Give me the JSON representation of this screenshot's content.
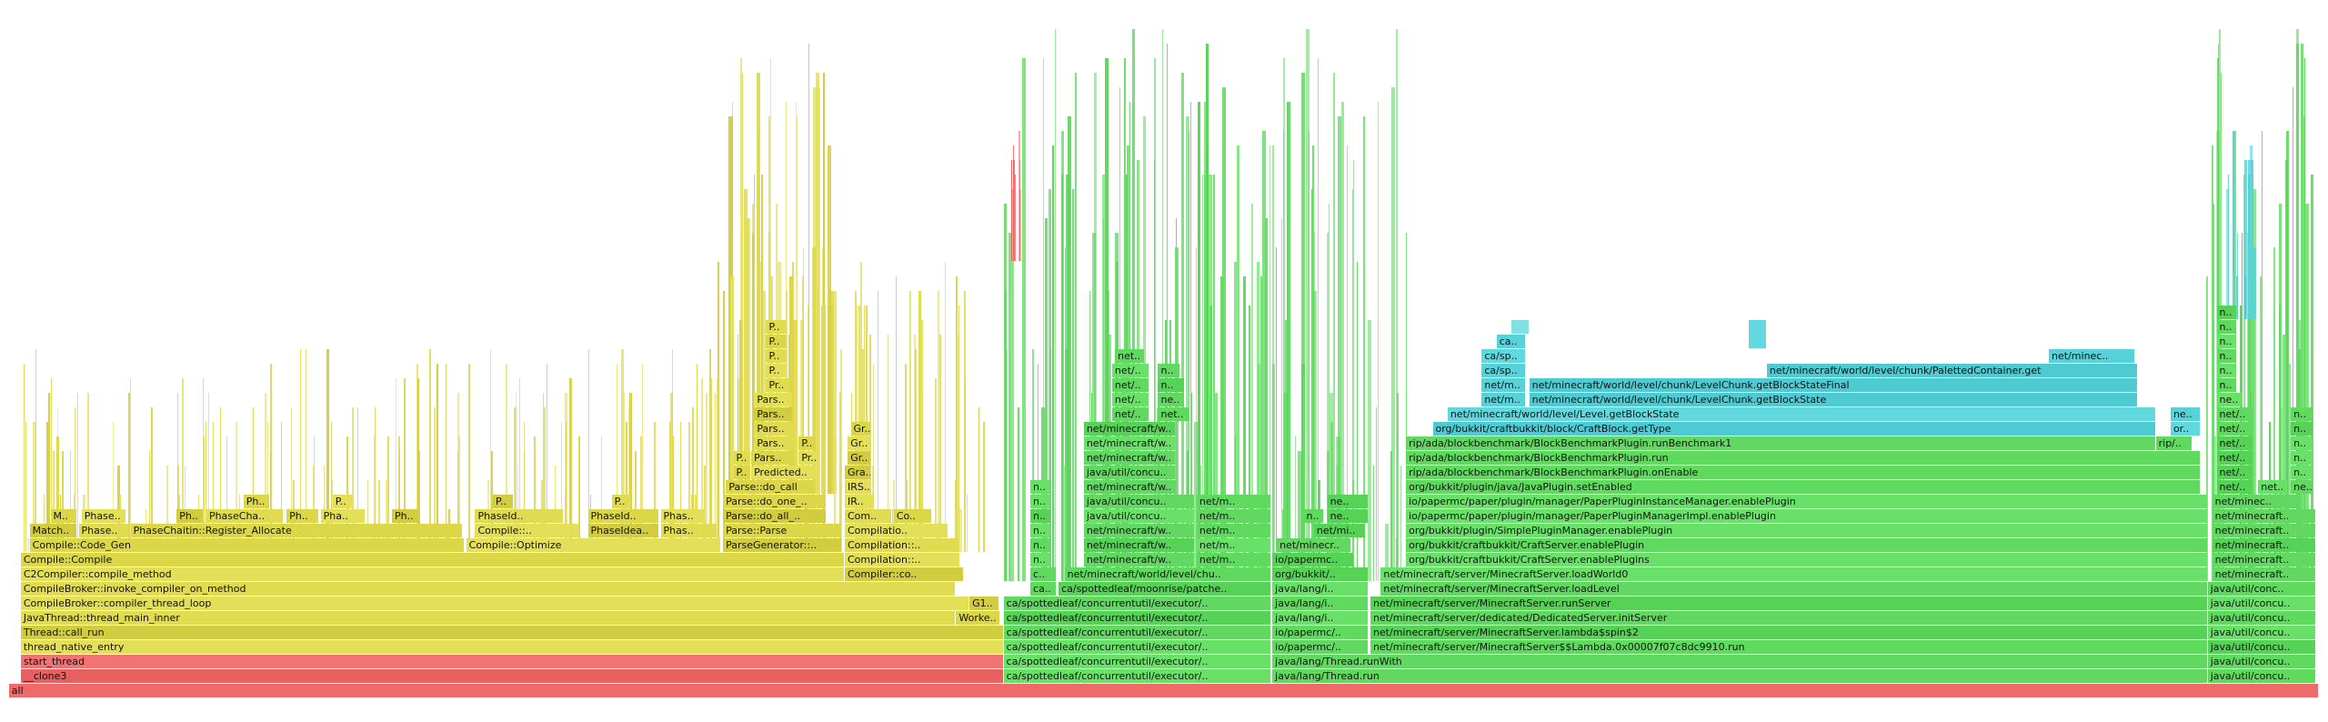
{
  "flame_graph": {
    "frames": [
      "all",
      "__clone3",
      "ca/spottedleaf/concurrentutil/executor/..",
      "java/lang/Thread.run",
      "java/util/concu..",
      "start_thread",
      "ca/spottedleaf/concurrentutil/executor/..",
      "java/lang/Thread.runWith",
      "java/util/concu..",
      "thread_native_entry",
      "ca/spottedleaf/concurrentutil/executor/..",
      "io/papermc/..",
      "net/minecraft/server/MinecraftServer$$Lambda.0x00007f07c8dc9910.run",
      "java/util/concu..",
      "Thread::call_run",
      "ca/spottedleaf/concurrentutil/executor/..",
      "io/papermc/..",
      "net/minecraft/server/MinecraftServer.lambda$spin$2",
      "java/util/concu..",
      "JavaThread::thread_main_inner",
      "Worke..",
      "ca/spottedleaf/concurrentutil/executor/..",
      "java/lang/i..",
      "net/minecraft/server/dedicated/DedicatedServer.initServer",
      "java/util/concu..",
      "CompileBroker::compiler_thread_loop",
      "G1..",
      "ca/spottedleaf/concurrentutil/executor/..",
      "java/lang/i..",
      "net/minecraft/server/MinecraftServer.runServer",
      "java/util/concu..",
      "CompileBroker::invoke_compiler_on_method",
      "ca..",
      "ca/spottedleaf/moonrise/patche..",
      "java/lang/i..",
      "net/minecraft/server/MinecraftServer.loadLevel",
      "java/util/conc..",
      "C2Compiler::compile_method",
      "Compiler::co..",
      "c..",
      "net/minecraft/world/level/chu..",
      "org/bukkit/..",
      "net/minecraft/server/MinecraftServer.loadWorld0",
      "net/minecraft..",
      "Compile::Compile",
      "Compilation::..",
      "n..",
      "net/minecraft/w..",
      "net/m..",
      "io/papermc..",
      "org/bukkit/craftbukkit/CraftServer.enablePlugins",
      "net/minecraft..",
      "Compile::Code_Gen",
      "Compile::Optimize",
      "ParseGenerator::..",
      "Compilation::..",
      "n..",
      "net/minecraft/w..",
      "net/m..",
      "net/minecr..",
      "org/bukkit/craftbukkit/CraftServer.enablePlugin",
      "net/minecraft..",
      "Match..",
      "Phase..",
      "PhaseChaitin::Register_Allocate",
      "Compile::..",
      "PhaseIdea..",
      "Phas..",
      "Parse::Parse",
      "Compilatio..",
      "n..",
      "net/minecraft/w..",
      "net/m..",
      "net/mi..",
      "org/bukkit/plugin/SimplePluginManager.enablePlugin",
      "net/minecraft..",
      "M..",
      "Phase..",
      "Ph..",
      "PhaseCha..",
      "Ph..",
      "Pha..",
      "Ph..",
      "PhaseId..",
      "PhaseId..",
      "Phas..",
      "Parse::do_all_..",
      "Com..",
      "Co..",
      "n..",
      "java/util/concu..",
      "net/m..",
      "n..",
      "ne..",
      "io/papermc/paper/plugin/manager/PaperPluginManagerImpl.enablePlugin",
      "net/minecraft..",
      "Ph..",
      "P..",
      "P..",
      "P..",
      "Parse::do_one_..",
      "IR..",
      "n..",
      "java/util/concu..",
      "net/m..",
      "ne..",
      "io/papermc/paper/plugin/manager/PaperPluginInstanceManager.enablePlugin",
      "net/minec..",
      "Parse::do_call",
      "IRS..",
      "n..",
      "net/minecraft/w..",
      "org/bukkit/plugin/java/JavaPlugin.setEnabled",
      "net/..",
      "net..",
      "ne..",
      "P..",
      "Predicted..",
      "Gra..",
      "java/util/concu..",
      "rip/ada/blockbenchmark/BlockBenchmarkPlugin.onEnable",
      "net/..",
      "n..",
      "P..",
      "Pars..",
      "Pr..",
      "Gr..",
      "net/minecraft/w..",
      "rip/ada/blockbenchmark/BlockBenchmarkPlugin.run",
      "net/..",
      "n..",
      "Pars..",
      "P..",
      "Gr..",
      "net/minecraft/w..",
      "rip/ada/blockbenchmark/BlockBenchmarkPlugin.runBenchmark1",
      "rip/..",
      "net/..",
      "n..",
      "Pars..",
      "Gr..",
      "net/minecraft/w..",
      "org/bukkit/craftbukkit/block/CraftBlock.getType",
      "or..",
      "net/..",
      "n..",
      "Pars..",
      "net/..",
      "net..",
      "net/minecraft/world/level/Level.getBlockState",
      "ne..",
      "net/..",
      "n..",
      "Pars..",
      "net/..",
      "ne..",
      "net/m..",
      "net/minecraft/world/level/chunk/LevelChunk.getBlockState",
      "ne..",
      "Pr..",
      "net/..",
      "n..",
      "net/m..",
      "net/minecraft/world/level/chunk/LevelChunk.getBlockStateFinal",
      "n..",
      "P..",
      "net/..",
      "n..",
      "ca/sp..",
      "net/minecraft/world/level/chunk/PalettedContainer.get",
      "n..",
      "P..",
      "net..",
      "ca/sp..",
      "net/minec..",
      "n..",
      "P..",
      "ca..",
      "n..",
      "P..",
      "n..",
      "n.."
    ]
  }
}
